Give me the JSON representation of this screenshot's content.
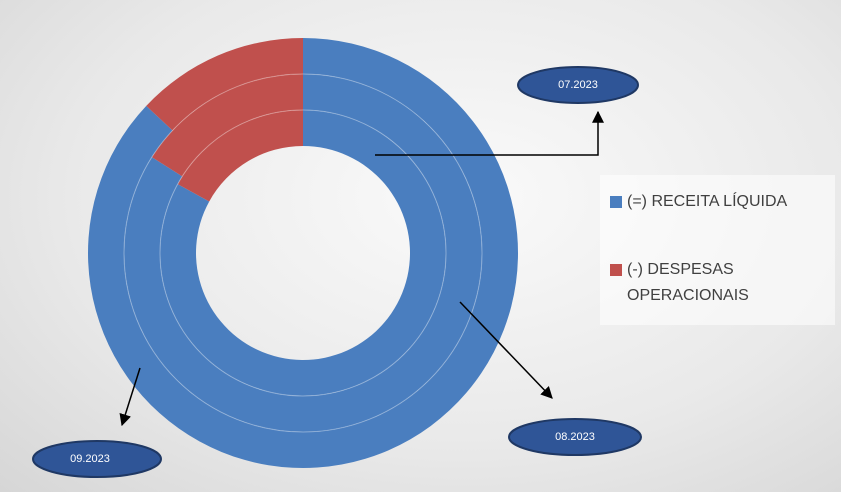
{
  "chart_data": {
    "type": "multi-donut",
    "categories": [
      "07.2023",
      "08.2023",
      "09.2023"
    ],
    "series": [
      {
        "name": "(=) RECEITA LÍQUIDA",
        "color": "#4a7ebf",
        "values": [
          83,
          84,
          87
        ]
      },
      {
        "name": "(-) DESPESAS OPERACIONAIS",
        "color": "#c0504d",
        "values": [
          17,
          16,
          13
        ]
      }
    ]
  }
}
